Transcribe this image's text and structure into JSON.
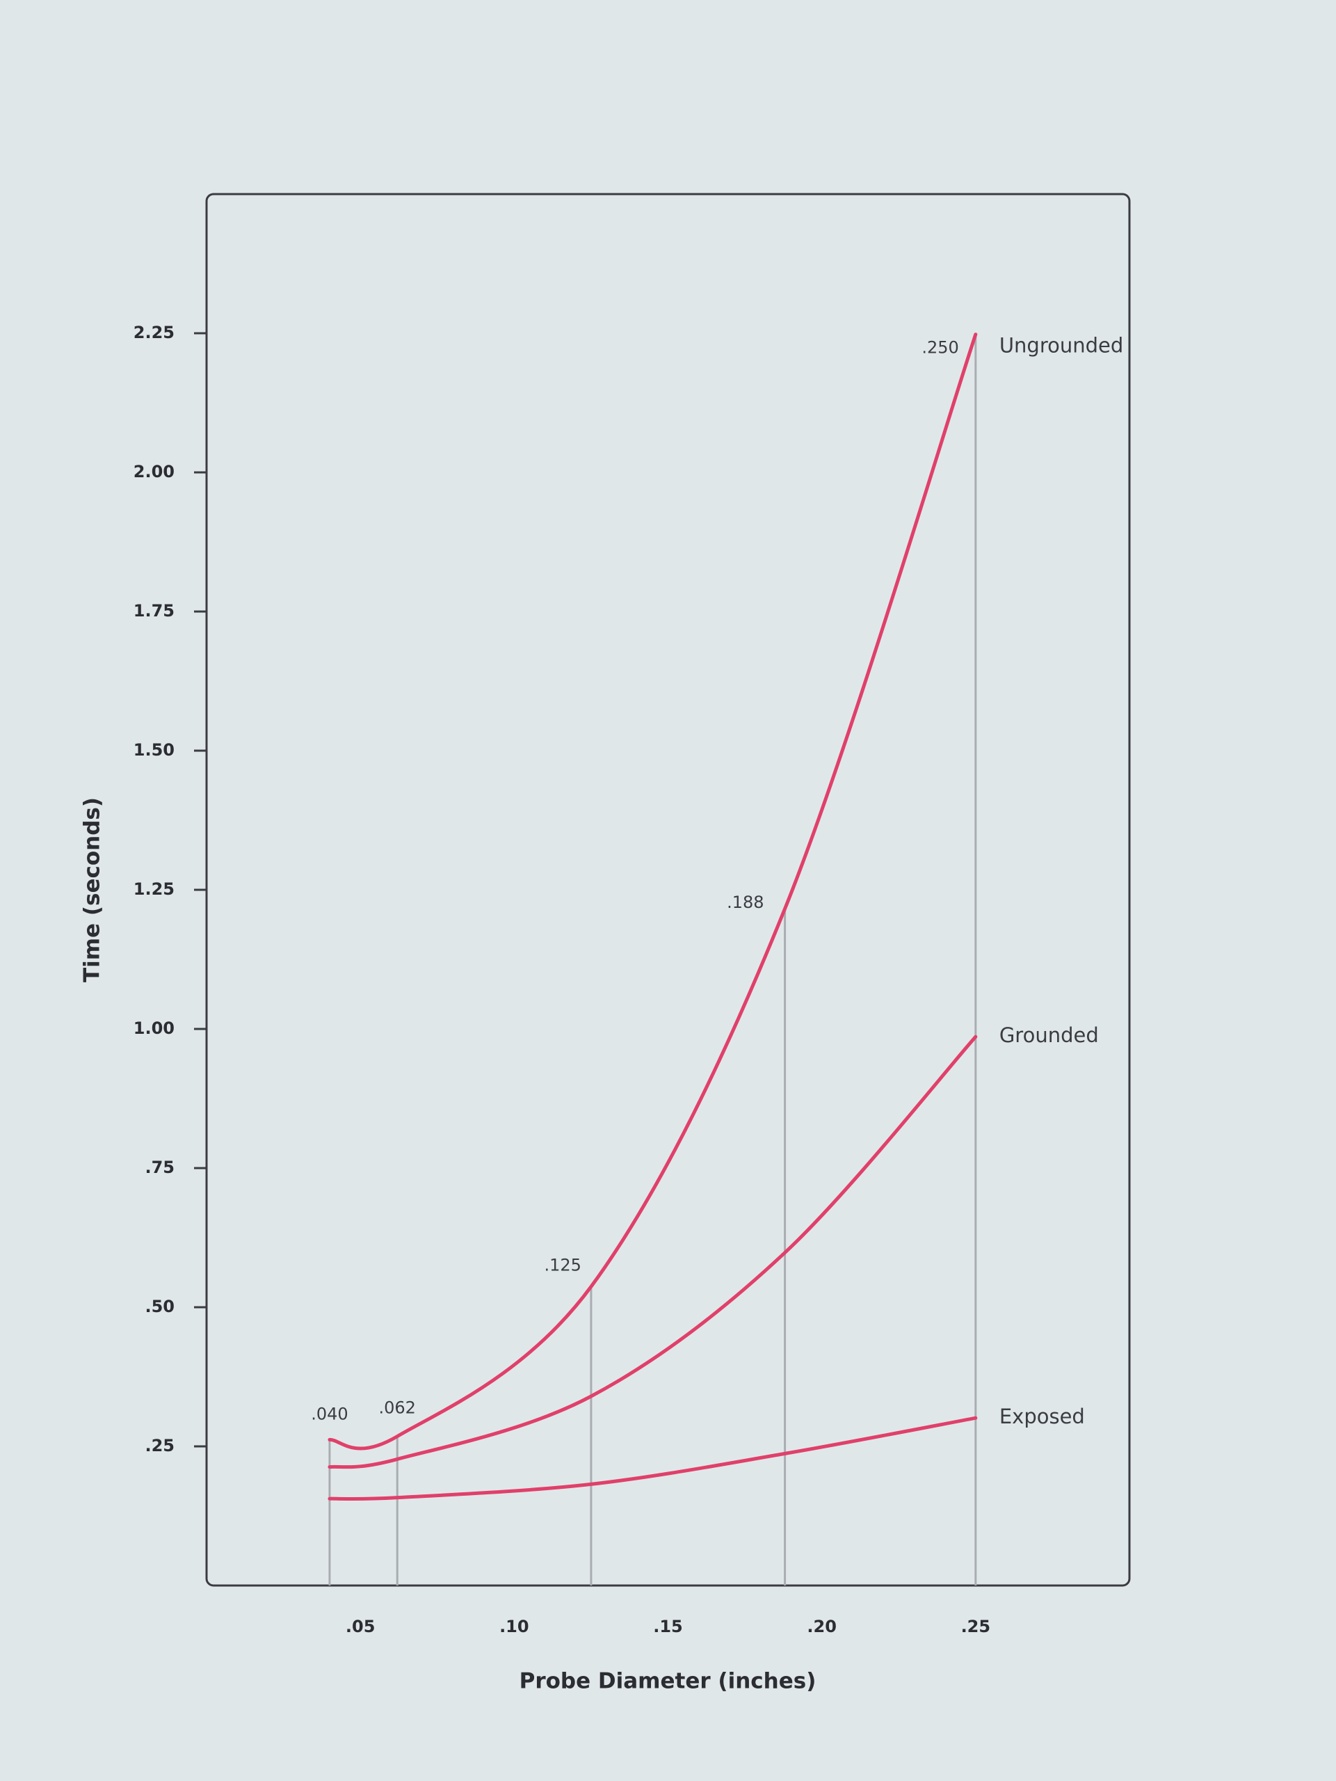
{
  "chart_data": {
    "type": "line",
    "x_axis_label": "Probe Diameter (inches)",
    "y_axis_label": "Time (seconds)",
    "x": [
      0.04,
      0.062,
      0.125,
      0.188,
      0.25
    ],
    "x_labels": [
      ".040",
      ".062",
      ".125",
      ".188",
      ".250"
    ],
    "series": [
      {
        "name": "Ungrounded",
        "color": "#e0406a",
        "values": [
          0.262,
          0.268,
          0.537,
          1.216,
          2.248
        ]
      },
      {
        "name": "Grounded",
        "color": "#e0406a",
        "values": [
          0.213,
          0.227,
          0.34,
          0.598,
          0.986
        ]
      },
      {
        "name": "Exposed",
        "color": "#e0406a",
        "values": [
          0.156,
          0.158,
          0.182,
          0.237,
          0.301
        ]
      }
    ],
    "xlim": [
      0,
      0.3
    ],
    "ylim": [
      0,
      2.5
    ],
    "xticks": [
      {
        "value": 0.05,
        "label": ".05"
      },
      {
        "value": 0.1,
        "label": ".10"
      },
      {
        "value": 0.15,
        "label": ".15"
      },
      {
        "value": 0.2,
        "label": ".20"
      },
      {
        "value": 0.25,
        "label": ".25"
      }
    ],
    "yticks": [
      {
        "value": 0.25,
        "label": ".25"
      },
      {
        "value": 0.5,
        "label": ".50"
      },
      {
        "value": 0.75,
        "label": ".75"
      },
      {
        "value": 1,
        "label": "1.00"
      },
      1.25,
      {
        "value": 1.5,
        "label": "1.50"
      },
      {
        "value": 1.75,
        "label": "1.75"
      },
      {
        "value": 2,
        "label": "2.00"
      },
      2.25
    ]
  }
}
